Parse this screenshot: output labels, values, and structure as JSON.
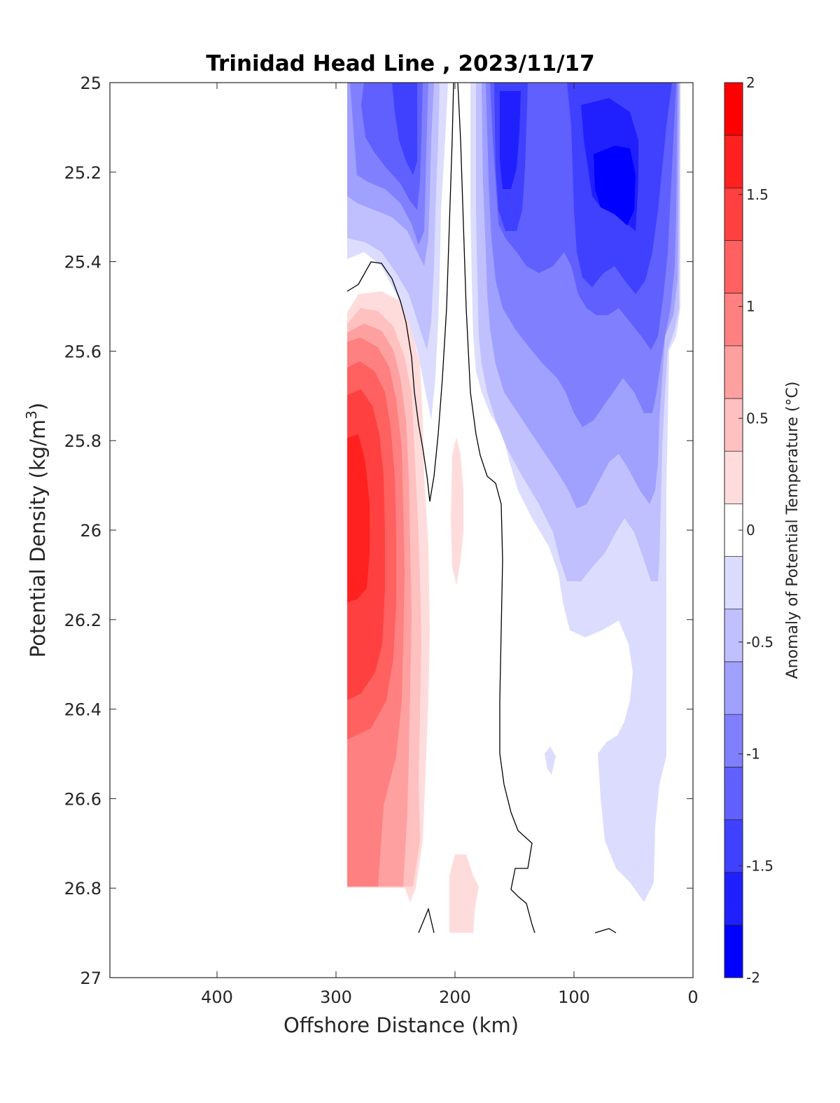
{
  "chart_data": {
    "type": "contour",
    "title": "Trinidad Head Line , 2023/11/17",
    "xlabel": "Offshore Distance (km)",
    "ylabel": "Potential Density (kg/m",
    "ylabel_sup": "3",
    "ylabel_close": ")",
    "xlim": [
      490,
      0
    ],
    "ylim": [
      25,
      27
    ],
    "xticks": [
      400,
      300,
      200,
      100,
      0
    ],
    "xtick_labels": [
      "400",
      "300",
      "200",
      "100",
      "0"
    ],
    "yticks": [
      25,
      25.2,
      25.4,
      25.6,
      25.8,
      26,
      26.2,
      26.4,
      26.6,
      26.8,
      27
    ],
    "ytick_labels": [
      "25",
      "25.2",
      "25.4",
      "25.6",
      "25.8",
      "26",
      "26.2",
      "26.4",
      "26.6",
      "26.8",
      "27"
    ],
    "colorbar": {
      "label": "Anomaly of Potential Temperature (°C)",
      "range": [
        -2,
        2
      ],
      "step": 0.25,
      "ticks": [
        2,
        1.5,
        1,
        0.5,
        0,
        -0.5,
        -1,
        -1.5,
        -2
      ],
      "tick_labels": [
        "2",
        "1.5",
        "1",
        "0.5",
        "0",
        "-0.5",
        "-1",
        "-1.5",
        "-2"
      ],
      "colors_top_to_bottom": [
        "#ff0000",
        "#ff2020",
        "#ff4040",
        "#ff6060",
        "#ff8080",
        "#ffa0a0",
        "#ffc0c0",
        "#ffdcdc",
        "#ffffff",
        "#dcdcff",
        "#c0c0ff",
        "#a0a0ff",
        "#8080ff",
        "#6060ff",
        "#4040ff",
        "#2020ff",
        "#0000ff"
      ]
    },
    "features": [
      {
        "name": "warm anomaly core",
        "x_km": 290,
        "y_density": 26.0,
        "value_c": 1.5
      },
      {
        "name": "cold anomaly core offshore",
        "x_km": 245,
        "y_density": 25.15,
        "value_c": -1.5
      },
      {
        "name": "cold anomaly core near 150 km",
        "x_km": 150,
        "y_density": 25.2,
        "value_c": -1.5
      },
      {
        "name": "cold anomaly core nearshore",
        "x_km": 65,
        "y_density": 25.25,
        "value_c": -1.75
      }
    ],
    "zero_contour": true,
    "grid": false
  }
}
